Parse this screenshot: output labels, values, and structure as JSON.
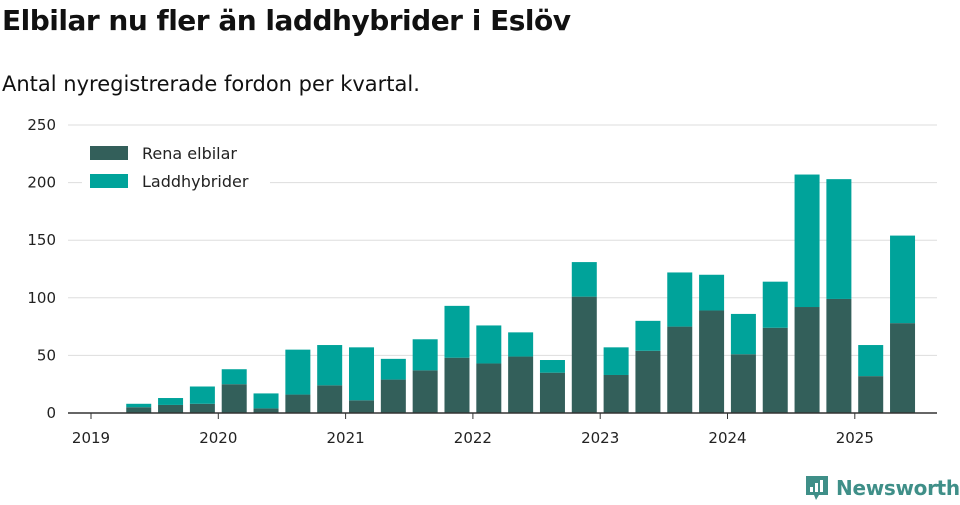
{
  "header": {
    "title": "Elbilar nu fler än laddhybrider i Eslöv",
    "subtitle": "Antal nyregistrerade fordon per kvartal."
  },
  "brand": {
    "name": "Newsworthy"
  },
  "colors": {
    "rena_elbilar": "#335f5a",
    "laddhybrider": "#00a39a",
    "grid": "#dddddd",
    "axis": "#333333"
  },
  "chart_data": {
    "type": "bar",
    "stacked": true,
    "x": [
      "2019-Q2",
      "2019-Q3",
      "2019-Q4",
      "2020-Q1",
      "2020-Q2",
      "2020-Q3",
      "2020-Q4",
      "2021-Q1",
      "2021-Q2",
      "2021-Q3",
      "2021-Q4",
      "2022-Q1",
      "2022-Q2",
      "2022-Q3",
      "2022-Q4",
      "2023-Q1",
      "2023-Q2",
      "2023-Q3",
      "2023-Q4",
      "2024-Q1",
      "2024-Q2",
      "2024-Q3",
      "2024-Q4",
      "2025-Q1",
      "2025-Q2"
    ],
    "xticks": [
      "2019",
      "2020",
      "2021",
      "2022",
      "2023",
      "2024",
      "2025"
    ],
    "ylim": [
      0,
      250
    ],
    "yticks": [
      0,
      50,
      100,
      150,
      200,
      250
    ],
    "grid": true,
    "legend_position": "top-left",
    "series": [
      {
        "name": "Rena elbilar",
        "values": [
          5,
          7,
          8,
          25,
          4,
          16,
          24,
          11,
          29,
          37,
          48,
          43,
          49,
          35,
          101,
          33,
          54,
          75,
          89,
          51,
          74,
          92,
          99,
          32,
          78
        ]
      },
      {
        "name": "Laddhybrider",
        "values": [
          3,
          6,
          15,
          13,
          13,
          39,
          35,
          46,
          18,
          27,
          45,
          33,
          21,
          11,
          30,
          24,
          26,
          47,
          31,
          35,
          40,
          115,
          104,
          27,
          76
        ]
      }
    ]
  }
}
